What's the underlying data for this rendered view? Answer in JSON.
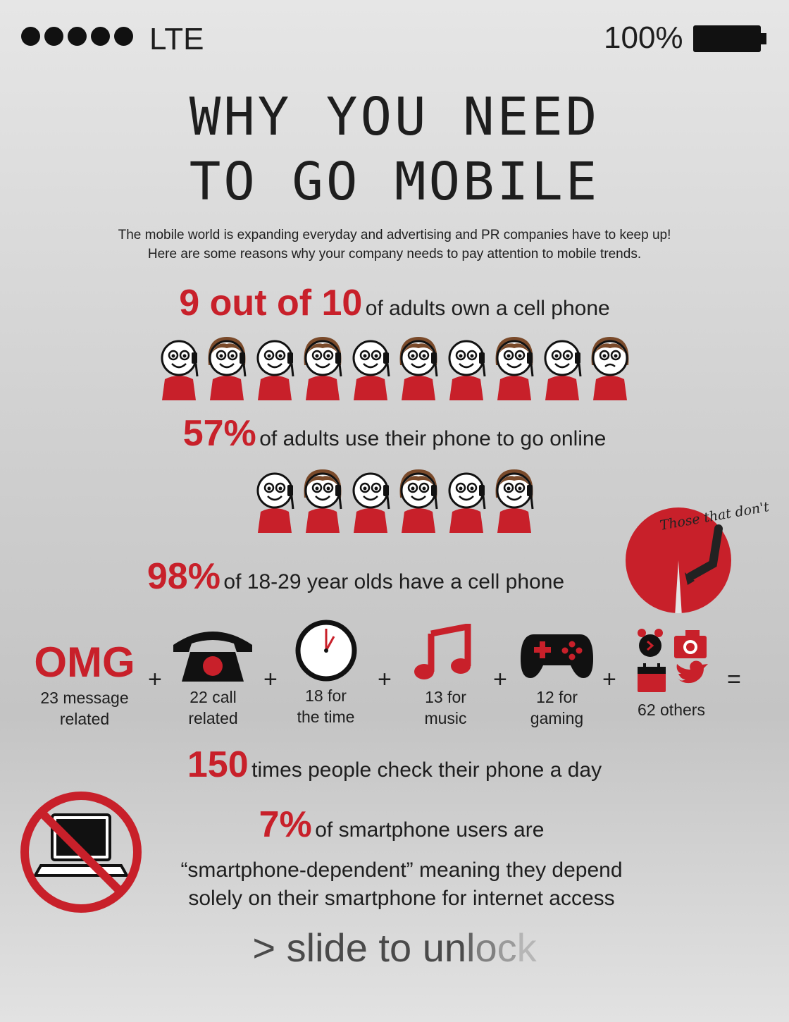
{
  "status": {
    "carrier": "LTE",
    "battery": "100%"
  },
  "title": {
    "line1": "WHY YOU NEED",
    "line2": "TO GO MOBILE"
  },
  "intro": {
    "line1": "The mobile world is expanding everyday and advertising and PR companies have to keep up!",
    "line2": "Here are some reasons why your company needs to pay attention to mobile trends."
  },
  "stats": {
    "owners": {
      "big": "9 out of 10",
      "text": "of adults own a cell phone",
      "owners": 9,
      "total": 10
    },
    "online": {
      "big": "57%",
      "text": "of adults use their phone to go online",
      "people": 6
    },
    "young": {
      "big": "98%",
      "text": "of 18-29 year olds have a cell phone",
      "percent": 98,
      "pie_note": "Those that don't"
    },
    "checks": {
      "big": "150",
      "text": "times people check their phone a day"
    },
    "dependent": {
      "big": "7%",
      "line1": "of smartphone users are",
      "line2": "“smartphone-dependent” meaning they depend",
      "line3": "solely on their smartphone for internet access"
    }
  },
  "apps": [
    {
      "icon": "omg-text",
      "label": "OMG",
      "line1": "23 message",
      "line2": "related"
    },
    {
      "icon": "telephone-icon",
      "line1": "22 call",
      "line2": "related"
    },
    {
      "icon": "clock-icon",
      "line1": "18 for",
      "line2": "the time"
    },
    {
      "icon": "music-note-icon",
      "line1": "13 for",
      "line2": "music"
    },
    {
      "icon": "gamepad-icon",
      "line1": "12 for",
      "line2": "gaming"
    },
    {
      "icon": "misc-apps-icon",
      "line1": "62 others"
    }
  ],
  "operators": {
    "plus": "+",
    "equals": "="
  },
  "unlock": "> slide to unlock",
  "colors": {
    "accent": "#c8202a",
    "dark": "#1e1e1e"
  }
}
